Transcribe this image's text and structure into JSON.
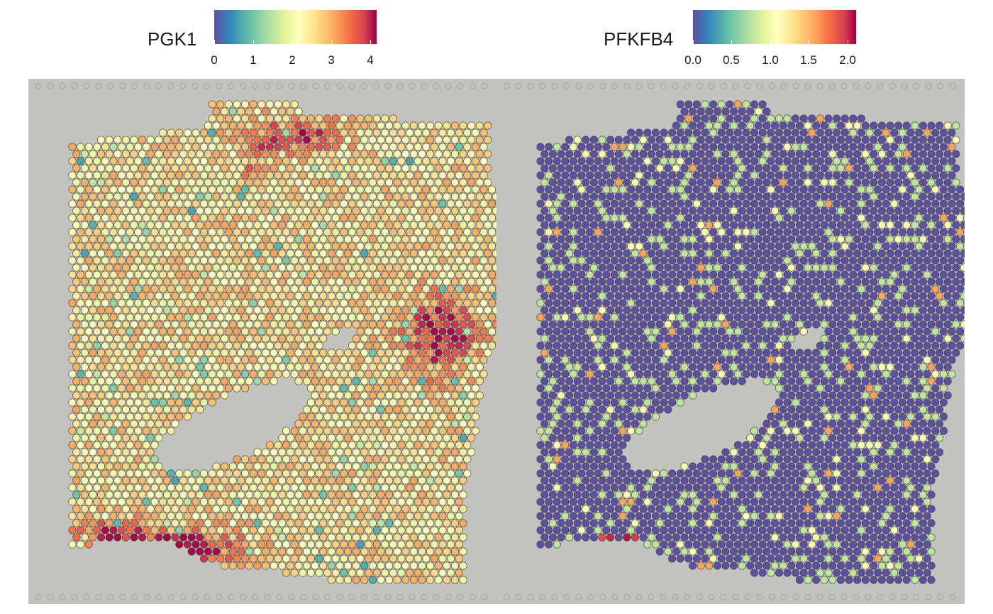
{
  "chart_data": [
    {
      "type": "scatter",
      "title": "PGK1",
      "colorbar": {
        "min": 0,
        "max": 4.15,
        "ticks": [
          "0",
          "1",
          "2",
          "3",
          "4"
        ],
        "tick_values": [
          0,
          1,
          2,
          3,
          4
        ],
        "palette": "Spectral"
      },
      "value_distribution": {
        "typical_range": [
          1.5,
          3.0
        ],
        "hotspots_max": 4.1
      }
    },
    {
      "type": "scatter",
      "title": "PFKFB4",
      "colorbar": {
        "min": 0,
        "max": 2.1,
        "ticks": [
          "0.0",
          "0.5",
          "1.0",
          "1.5",
          "2.0"
        ],
        "tick_values": [
          0,
          0.5,
          1,
          1.5,
          2
        ],
        "palette": "Spectral"
      },
      "value_distribution": {
        "typical_value": 0.0,
        "sparse_values": [
          0.7,
          1.0,
          1.5,
          2.0
        ]
      }
    }
  ],
  "colors": {
    "background_tissue": "#c2c2bf",
    "spot_outline": "#3a3a3a",
    "palette_stops": [
      "#5e4fa2",
      "#3288bd",
      "#66c2a5",
      "#abdda4",
      "#e6f598",
      "#ffffbf",
      "#fee08b",
      "#fdae61",
      "#f46d43",
      "#d53e4f",
      "#9e0142"
    ]
  }
}
